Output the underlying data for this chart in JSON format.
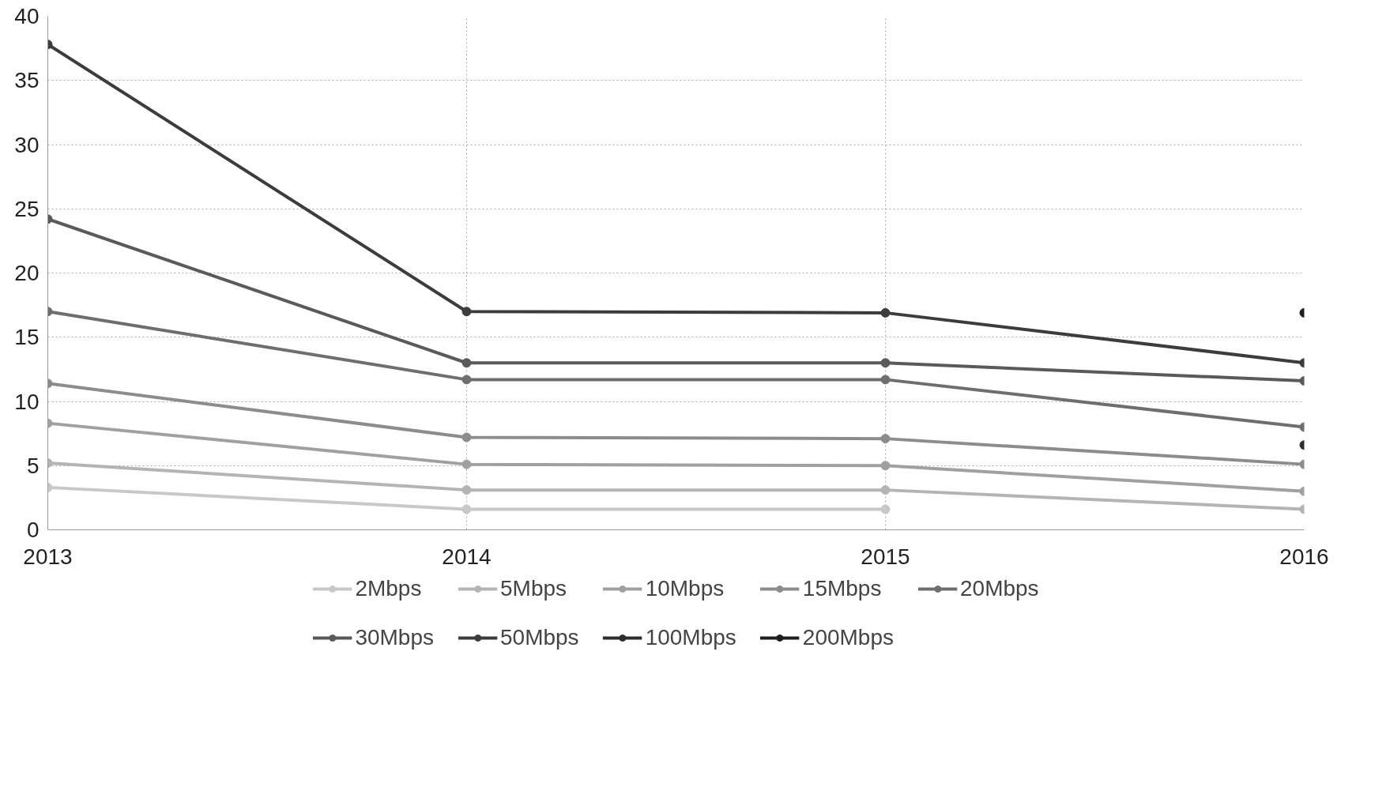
{
  "chart_data": {
    "type": "line",
    "categories": [
      "2013",
      "2014",
      "2015",
      "2016"
    ],
    "series": [
      {
        "name": "2Mbps",
        "color": "#c8c8c8",
        "values": [
          3.3,
          1.6,
          1.6,
          null
        ]
      },
      {
        "name": "5Mbps",
        "color": "#b4b4b4",
        "values": [
          5.2,
          3.1,
          3.1,
          1.6
        ]
      },
      {
        "name": "10Mbps",
        "color": "#a0a0a0",
        "values": [
          8.3,
          5.1,
          5.0,
          3.0
        ]
      },
      {
        "name": "15Mbps",
        "color": "#8c8c8c",
        "values": [
          11.4,
          7.2,
          7.1,
          5.1
        ]
      },
      {
        "name": "20Mbps",
        "color": "#6e6e6e",
        "values": [
          17.0,
          11.7,
          11.7,
          8.0
        ]
      },
      {
        "name": "30Mbps",
        "color": "#5a5a5a",
        "values": [
          24.2,
          13.0,
          13.0,
          11.6
        ]
      },
      {
        "name": "50Mbps",
        "color": "#3c3c3c",
        "values": [
          37.8,
          17.0,
          16.9,
          13.0
        ]
      },
      {
        "name": "100Mbps",
        "color": "#2d2d2d",
        "values": [
          null,
          null,
          null,
          6.6
        ]
      },
      {
        "name": "200Mbps",
        "color": "#1e1e1e",
        "values": [
          null,
          null,
          null,
          16.9
        ]
      }
    ],
    "ylim": [
      0,
      40
    ],
    "yticks": [
      0,
      5,
      10,
      15,
      20,
      25,
      30,
      35,
      40
    ],
    "grid": true,
    "legend": "bottom",
    "marker": "circle",
    "line_style": "solid"
  }
}
